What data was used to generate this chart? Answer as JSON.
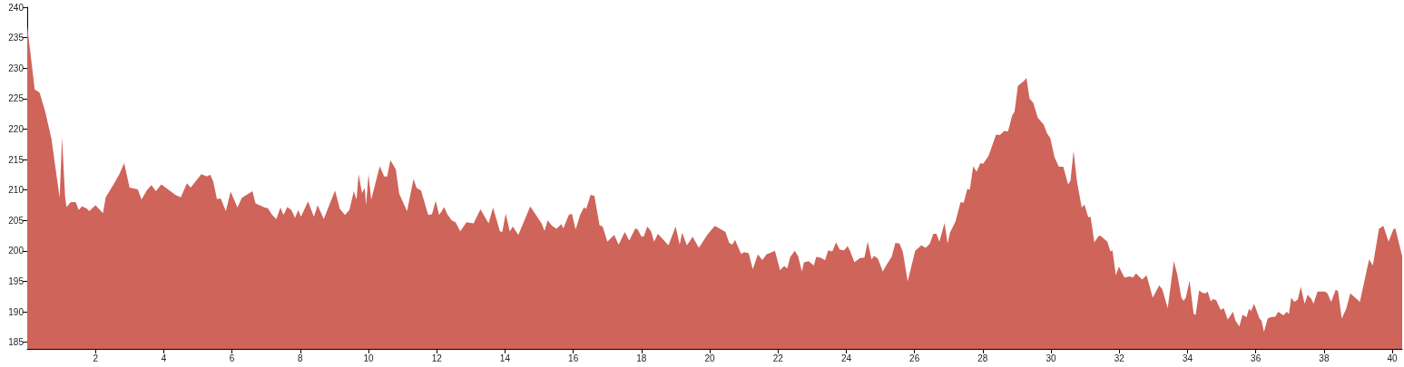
{
  "chart_data": {
    "type": "area",
    "color": "#cf645a",
    "x": [
      0.0,
      0.22,
      0.36,
      0.53,
      0.71,
      0.95,
      1.02,
      1.11,
      1.15,
      1.28,
      1.42,
      1.51,
      1.6,
      1.73,
      1.82,
      2.0,
      2.22,
      2.3,
      2.53,
      2.7,
      2.84,
      3.0,
      3.24,
      3.35,
      3.5,
      3.64,
      3.77,
      3.93,
      4.34,
      4.5,
      4.68,
      4.79,
      5.1,
      5.27,
      5.36,
      5.45,
      5.56,
      5.67,
      5.82,
      5.96,
      6.16,
      6.29,
      6.6,
      6.69,
      6.96,
      7.05,
      7.18,
      7.3,
      7.42,
      7.51,
      7.62,
      7.74,
      7.85,
      7.94,
      8.02,
      8.23,
      8.4,
      8.51,
      8.69,
      9.02,
      9.16,
      9.31,
      9.44,
      9.57,
      9.65,
      9.71,
      9.81,
      9.89,
      9.93,
      10.0,
      10.08,
      10.33,
      10.46,
      10.55,
      10.64,
      10.8,
      10.9,
      11.13,
      11.32,
      11.41,
      11.54,
      11.75,
      11.86,
      11.97,
      12.07,
      12.22,
      12.31,
      12.44,
      12.55,
      12.69,
      12.87,
      13.08,
      13.28,
      13.52,
      13.65,
      13.85,
      13.92,
      14.02,
      14.14,
      14.23,
      14.39,
      14.74,
      15.07,
      15.16,
      15.25,
      15.38,
      15.51,
      15.65,
      15.71,
      15.87,
      15.96,
      16.07,
      16.2,
      16.31,
      16.38,
      16.51,
      16.62,
      16.77,
      16.86,
      17.0,
      17.2,
      17.33,
      17.51,
      17.64,
      17.82,
      17.89,
      18.0,
      18.07,
      18.17,
      18.28,
      18.37,
      18.48,
      18.79,
      19.0,
      19.12,
      19.19,
      19.33,
      19.5,
      19.68,
      19.95,
      20.15,
      20.46,
      20.57,
      20.66,
      20.74,
      20.92,
      21.01,
      21.14,
      21.26,
      21.41,
      21.54,
      21.66,
      21.91,
      22.06,
      22.18,
      22.27,
      22.36,
      22.49,
      22.59,
      22.7,
      22.76,
      22.9,
      23.05,
      23.12,
      23.24,
      23.38,
      23.47,
      23.59,
      23.7,
      23.81,
      23.94,
      24.04,
      24.11,
      24.24,
      24.4,
      24.53,
      24.63,
      24.74,
      24.82,
      24.93,
      25.07,
      25.18,
      25.33,
      25.44,
      25.56,
      25.66,
      25.8,
      26.02,
      26.2,
      26.33,
      26.45,
      26.55,
      26.64,
      26.73,
      26.88,
      26.97,
      27.04,
      27.2,
      27.35,
      27.44,
      27.55,
      27.62,
      27.72,
      27.82,
      27.93,
      28.01,
      28.17,
      28.39,
      28.5,
      28.63,
      28.74,
      28.86,
      28.93,
      29.03,
      29.21,
      29.28,
      29.37,
      29.48,
      29.61,
      29.79,
      29.88,
      29.98,
      30.1,
      30.23,
      30.36,
      30.5,
      30.57,
      30.66,
      30.76,
      30.9,
      30.98,
      31.09,
      31.16,
      31.27,
      31.4,
      31.47,
      31.65,
      31.74,
      31.8,
      31.9,
      31.99,
      32.15,
      32.31,
      32.4,
      32.49,
      32.67,
      32.8,
      32.98,
      33.17,
      33.26,
      33.42,
      33.6,
      33.7,
      33.82,
      33.88,
      33.95,
      34.06,
      34.18,
      34.24,
      34.34,
      34.44,
      34.53,
      34.59,
      34.68,
      34.75,
      34.84,
      34.97,
      35.06,
      35.18,
      35.33,
      35.4,
      35.52,
      35.61,
      35.73,
      35.8,
      35.86,
      35.95,
      36.11,
      36.17,
      36.24,
      36.35,
      36.44,
      36.57,
      36.66,
      36.81,
      36.91,
      36.97,
      37.04,
      37.13,
      37.23,
      37.32,
      37.43,
      37.52,
      37.63,
      37.69,
      37.81,
      38.03,
      38.1,
      38.21,
      38.34,
      38.41,
      38.52,
      38.65,
      38.77,
      38.9,
      39.05,
      39.32,
      39.43,
      39.61,
      39.74,
      39.89,
      40.03,
      40.09,
      40.29
    ],
    "values": [
      236.9,
      226.5,
      226.0,
      222.8,
      218.4,
      208.7,
      218.6,
      208.9,
      207.2,
      208.0,
      208.0,
      206.7,
      207.3,
      207.0,
      206.5,
      207.5,
      206.2,
      208.8,
      210.9,
      212.6,
      214.4,
      210.4,
      210.1,
      208.4,
      209.9,
      210.8,
      209.8,
      210.9,
      209.2,
      208.8,
      211.1,
      210.4,
      212.6,
      212.2,
      212.5,
      211.4,
      208.5,
      208.6,
      206.5,
      209.7,
      207.1,
      208.7,
      209.8,
      207.8,
      207.1,
      207.0,
      205.9,
      205.2,
      207.1,
      205.9,
      207.2,
      206.7,
      205.4,
      206.7,
      205.6,
      208.1,
      205.6,
      207.5,
      205.2,
      209.9,
      206.9,
      205.9,
      206.7,
      209.8,
      208.4,
      212.6,
      209.5,
      210.3,
      207.5,
      212.6,
      208.4,
      213.9,
      212.2,
      212.2,
      214.9,
      213.4,
      209.4,
      206.5,
      211.8,
      210.3,
      209.9,
      205.9,
      206.0,
      208.2,
      205.9,
      207.2,
      206.0,
      205.0,
      204.7,
      203.2,
      204.7,
      204.5,
      206.8,
      204.5,
      207.1,
      203.2,
      203.1,
      206.1,
      203.2,
      204.0,
      202.6,
      207.3,
      204.5,
      203.3,
      205.0,
      204.1,
      203.6,
      204.4,
      203.7,
      205.9,
      206.1,
      203.5,
      205.9,
      207.1,
      206.9,
      209.2,
      209.0,
      204.2,
      204.0,
      201.5,
      202.6,
      201.0,
      203.1,
      201.7,
      203.7,
      203.5,
      202.3,
      202.4,
      204.0,
      203.2,
      201.5,
      202.8,
      200.9,
      204.0,
      201.0,
      203.0,
      200.9,
      202.3,
      200.5,
      202.8,
      204.1,
      203.1,
      201.3,
      201.0,
      201.8,
      199.5,
      199.8,
      199.6,
      197.0,
      199.4,
      198.5,
      199.4,
      200.0,
      196.8,
      197.5,
      197.1,
      199.0,
      200.0,
      199.1,
      196.6,
      198.1,
      198.3,
      197.6,
      199.0,
      198.9,
      198.5,
      200.1,
      199.9,
      201.4,
      200.2,
      200.1,
      200.8,
      200.0,
      198.1,
      198.8,
      198.9,
      201.5,
      198.6,
      199.2,
      198.7,
      196.6,
      197.7,
      199.0,
      201.3,
      201.2,
      199.8,
      195.0,
      200.0,
      200.9,
      200.5,
      201.2,
      202.8,
      202.8,
      201.5,
      204.6,
      201.2,
      203.0,
      204.8,
      208.0,
      207.9,
      210.2,
      210.0,
      213.9,
      213.0,
      214.4,
      214.3,
      215.6,
      219.1,
      219.0,
      219.7,
      219.6,
      222.2,
      222.8,
      227.1,
      227.9,
      228.4,
      225.0,
      224.3,
      221.9,
      220.7,
      219.3,
      218.5,
      215.4,
      213.8,
      213.8,
      210.9,
      211.5,
      216.4,
      211.4,
      207.1,
      207.6,
      205.5,
      205.6,
      201.4,
      202.5,
      202.4,
      201.5,
      199.9,
      200.1,
      196.0,
      197.4,
      195.6,
      195.8,
      195.6,
      196.3,
      195.3,
      196.0,
      192.3,
      194.3,
      193.7,
      190.6,
      198.3,
      196.1,
      192.3,
      191.8,
      192.3,
      195.1,
      189.6,
      189.5,
      193.5,
      193.1,
      193.0,
      193.3,
      191.7,
      192.1,
      191.9,
      190.3,
      190.6,
      188.7,
      190.0,
      188.6,
      187.6,
      189.5,
      189.1,
      190.5,
      190.1,
      191.3,
      188.9,
      188.5,
      186.7,
      188.9,
      189.1,
      189.2,
      190.0,
      189.4,
      190.0,
      189.6,
      192.3,
      191.6,
      192.0,
      194.1,
      191.3,
      192.8,
      192.1,
      191.3,
      193.3,
      193.3,
      193.0,
      191.6,
      193.6,
      193.4,
      188.9,
      190.5,
      193.0,
      192.4,
      191.6,
      198.6,
      197.6,
      203.6,
      204.1,
      201.5,
      203.5,
      203.7,
      199.1
    ],
    "xlim": [
      0,
      40.29
    ],
    "ylim": [
      183.9,
      240
    ],
    "xticks": [
      2,
      4,
      6,
      8,
      10,
      12,
      14,
      16,
      18,
      20,
      22,
      24,
      26,
      28,
      30,
      32,
      34,
      36,
      38,
      40
    ],
    "yticks": [
      185,
      190,
      195,
      200,
      205,
      210,
      215,
      220,
      225,
      230,
      235,
      240
    ],
    "grid": false,
    "marker": "none"
  }
}
